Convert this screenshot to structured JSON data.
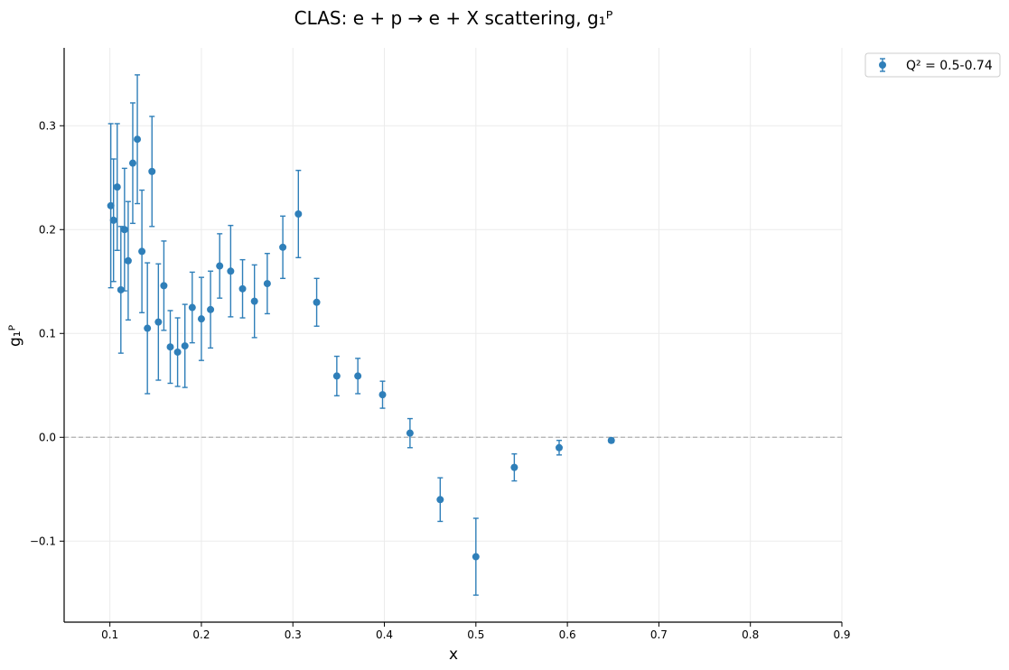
{
  "chart_data": {
    "type": "scatter",
    "title": "CLAS: e + p → e + X scattering, g₁ᴾ",
    "xlabel": "x",
    "ylabel": "g₁ᴾ",
    "xlim": [
      0.05,
      0.9
    ],
    "ylim": [
      -0.178,
      0.375
    ],
    "x_ticks": [
      0.1,
      0.2,
      0.3,
      0.4,
      0.5,
      0.6,
      0.7,
      0.8,
      0.9
    ],
    "x_tick_labels": [
      "0.1",
      "0.2",
      "0.3",
      "0.4",
      "0.5",
      "0.6",
      "0.7",
      "0.8",
      "0.9"
    ],
    "y_ticks": [
      -0.1,
      0.0,
      0.1,
      0.2,
      0.3
    ],
    "y_tick_labels": [
      "−0.1",
      "0.0",
      "0.1",
      "0.2",
      "0.3"
    ],
    "grid": true,
    "reference_line": {
      "y": 0.0,
      "style": "dashed",
      "color": "#b0b0b0"
    },
    "legend_position": "upper-right-outside",
    "series": [
      {
        "name": "Q² = 0.5-0.74",
        "color": "#2f7fb9",
        "points": [
          {
            "x": 0.101,
            "y": 0.223,
            "err": 0.079
          },
          {
            "x": 0.104,
            "y": 0.209,
            "err": 0.059
          },
          {
            "x": 0.108,
            "y": 0.241,
            "err": 0.061
          },
          {
            "x": 0.112,
            "y": 0.142,
            "err": 0.061
          },
          {
            "x": 0.116,
            "y": 0.2,
            "err": 0.059
          },
          {
            "x": 0.12,
            "y": 0.17,
            "err": 0.057
          },
          {
            "x": 0.125,
            "y": 0.264,
            "err": 0.058
          },
          {
            "x": 0.13,
            "y": 0.287,
            "err": 0.062
          },
          {
            "x": 0.135,
            "y": 0.179,
            "err": 0.059
          },
          {
            "x": 0.141,
            "y": 0.105,
            "err": 0.063
          },
          {
            "x": 0.146,
            "y": 0.256,
            "err": 0.053
          },
          {
            "x": 0.153,
            "y": 0.111,
            "err": 0.056
          },
          {
            "x": 0.159,
            "y": 0.146,
            "err": 0.043
          },
          {
            "x": 0.166,
            "y": 0.087,
            "err": 0.035
          },
          {
            "x": 0.174,
            "y": 0.082,
            "err": 0.033
          },
          {
            "x": 0.182,
            "y": 0.088,
            "err": 0.04
          },
          {
            "x": 0.19,
            "y": 0.125,
            "err": 0.034
          },
          {
            "x": 0.2,
            "y": 0.114,
            "err": 0.04
          },
          {
            "x": 0.21,
            "y": 0.123,
            "err": 0.037
          },
          {
            "x": 0.22,
            "y": 0.165,
            "err": 0.031
          },
          {
            "x": 0.232,
            "y": 0.16,
            "err": 0.044
          },
          {
            "x": 0.245,
            "y": 0.143,
            "err": 0.028
          },
          {
            "x": 0.258,
            "y": 0.131,
            "err": 0.035
          },
          {
            "x": 0.272,
            "y": 0.148,
            "err": 0.029
          },
          {
            "x": 0.289,
            "y": 0.183,
            "err": 0.03
          },
          {
            "x": 0.306,
            "y": 0.215,
            "err": 0.042
          },
          {
            "x": 0.326,
            "y": 0.13,
            "err": 0.023
          },
          {
            "x": 0.348,
            "y": 0.059,
            "err": 0.019
          },
          {
            "x": 0.371,
            "y": 0.059,
            "err": 0.017
          },
          {
            "x": 0.398,
            "y": 0.041,
            "err": 0.013
          },
          {
            "x": 0.428,
            "y": 0.004,
            "err": 0.014
          },
          {
            "x": 0.461,
            "y": -0.06,
            "err": 0.021
          },
          {
            "x": 0.5,
            "y": -0.115,
            "err": 0.037
          },
          {
            "x": 0.542,
            "y": -0.029,
            "err": 0.013
          },
          {
            "x": 0.591,
            "y": -0.01,
            "err": 0.007
          },
          {
            "x": 0.648,
            "y": -0.003,
            "err": 0.002
          }
        ]
      }
    ]
  }
}
